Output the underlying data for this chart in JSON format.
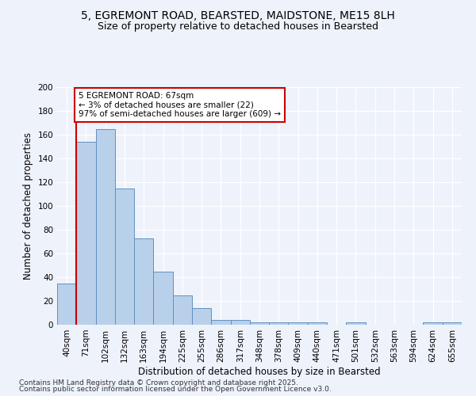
{
  "title_line1": "5, EGREMONT ROAD, BEARSTED, MAIDSTONE, ME15 8LH",
  "title_line2": "Size of property relative to detached houses in Bearsted",
  "xlabel": "Distribution of detached houses by size in Bearsted",
  "ylabel": "Number of detached properties",
  "categories": [
    "40sqm",
    "71sqm",
    "102sqm",
    "132sqm",
    "163sqm",
    "194sqm",
    "225sqm",
    "255sqm",
    "286sqm",
    "317sqm",
    "348sqm",
    "378sqm",
    "409sqm",
    "440sqm",
    "471sqm",
    "501sqm",
    "532sqm",
    "563sqm",
    "594sqm",
    "624sqm",
    "655sqm"
  ],
  "bar_heights": [
    35,
    154,
    165,
    115,
    73,
    45,
    25,
    14,
    4,
    4,
    2,
    2,
    2,
    2,
    0,
    2,
    0,
    0,
    0,
    2,
    2
  ],
  "bar_color": "#b8d0ea",
  "bar_edge_color": "#6090c0",
  "annotation_text_line1": "5 EGREMONT ROAD: 67sqm",
  "annotation_text_line2": "← 3% of detached houses are smaller (22)",
  "annotation_text_line3": "97% of semi-detached houses are larger (609) →",
  "annotation_box_color": "#ffffff",
  "annotation_box_edge_color": "#cc0000",
  "vline_color": "#cc0000",
  "vline_position": 0.5,
  "ylim": [
    0,
    200
  ],
  "yticks": [
    0,
    20,
    40,
    60,
    80,
    100,
    120,
    140,
    160,
    180,
    200
  ],
  "background_color": "#eef2fb",
  "footer_line1": "Contains HM Land Registry data © Crown copyright and database right 2025.",
  "footer_line2": "Contains public sector information licensed under the Open Government Licence v3.0.",
  "title_fontsize": 10,
  "subtitle_fontsize": 9,
  "axis_label_fontsize": 8.5,
  "tick_fontsize": 7.5,
  "annotation_fontsize": 7.5,
  "footer_fontsize": 6.5
}
